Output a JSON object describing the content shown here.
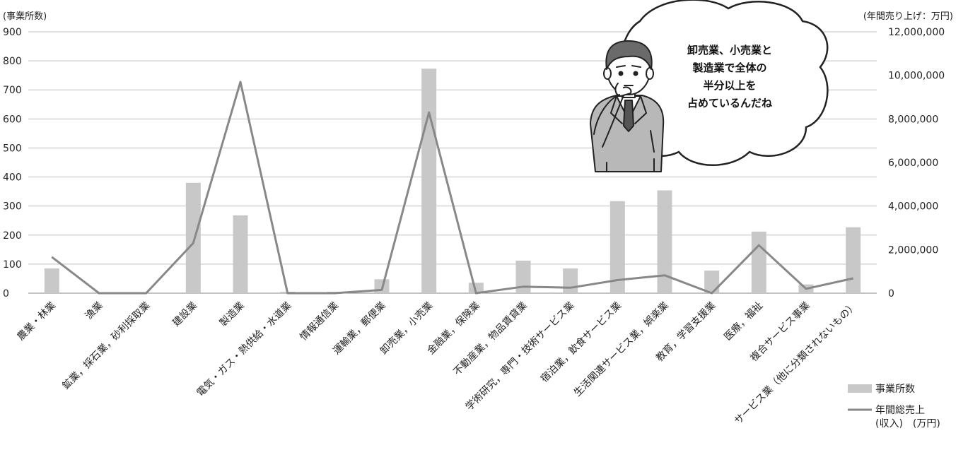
{
  "chart_data": {
    "type": "bar",
    "left_axis_unit": "(事業所数)",
    "right_axis_unit": "(年間売り上げ：万円)",
    "ylim_left": [
      0,
      900
    ],
    "ylim_right": [
      0,
      12000000
    ],
    "left_ticks": [
      "0",
      "100",
      "200",
      "300",
      "400",
      "500",
      "600",
      "700",
      "800",
      "900"
    ],
    "right_ticks": [
      "0",
      "2,000,000",
      "4,000,000",
      "6,000,000",
      "8,000,000",
      "10,000,000",
      "12,000,000"
    ],
    "grid": true,
    "categories": [
      "農業・林業",
      "漁業",
      "鉱業，採石業，砂利採取業",
      "建設業",
      "製造業",
      "電気・ガス・熱供給・水道業",
      "情報通信業",
      "運輸業，郵便業",
      "卸売業，小売業",
      "金融業，保険業",
      "不動産業，物品賃貸業",
      "学術研究，専門・技術サービス業",
      "宿泊業，飲食サービス業",
      "生活関連サービス業，娯楽業",
      "教育，学習支援業",
      "医療，福祉",
      "複合サービス事業",
      "サービス業（他に分類されないもの）"
    ],
    "series": [
      {
        "name": "事業所数",
        "kind": "bar",
        "axis": "left",
        "color": "#c8c8c8",
        "values": [
          85,
          3,
          0,
          380,
          268,
          5,
          5,
          48,
          773,
          36,
          112,
          85,
          317,
          354,
          78,
          212,
          30,
          227
        ]
      },
      {
        "name": "年間総売上",
        "name_line2": "(収入)　(万円)",
        "kind": "line",
        "axis": "right",
        "color": "#888888",
        "values": [
          1660000,
          0,
          0,
          2300000,
          9700000,
          0,
          0,
          150000,
          8300000,
          0,
          300000,
          250000,
          600000,
          820000,
          0,
          2200000,
          200000,
          680000
        ]
      }
    ],
    "legend_position": "bottom-right"
  },
  "callout": {
    "lines": [
      "卸売業、小売業と",
      "製造業で全体の",
      "半分以上を",
      "占めているんだね"
    ]
  }
}
